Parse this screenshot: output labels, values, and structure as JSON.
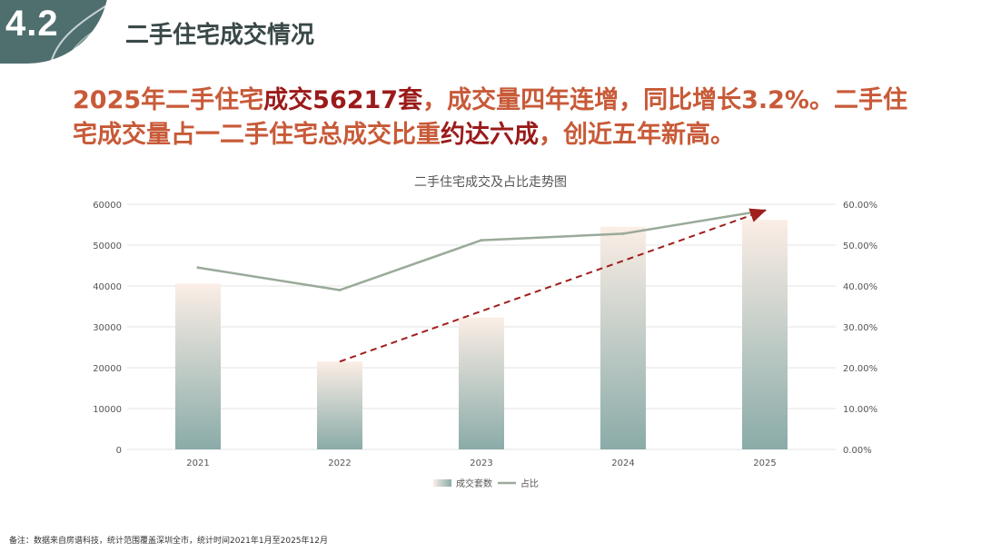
{
  "header": {
    "section_number": "4.2",
    "section_title": "二手住宅成交情况"
  },
  "headline": {
    "line1_part1": "2025年二手住宅",
    "line1_highlight": "成交56217套",
    "line1_part2": "，成交量四年连增，同比增长3.2%。二手住",
    "line2_part1": "宅成交量占一二手住宅总成交比重",
    "line2_highlight": "约达六成",
    "line2_part2": "，创近五年新高。"
  },
  "footnote": "备注：数据来自房谱科技，统计范围覆盖深圳全市，统计时间2021年1月至2025年12月",
  "colors": {
    "badge": "#4f6f6f",
    "headline": "#c85a38",
    "headline_highlight": "#9b1a1a",
    "bar_top": "#fbeee6",
    "bar_bottom": "#8aaba8",
    "line": "#9aaa99",
    "trend_arrow": "#a01e1e"
  },
  "chart_data": {
    "type": "bar",
    "title": "二手住宅成交及占比走势图",
    "categories": [
      "2021",
      "2022",
      "2023",
      "2024",
      "2025"
    ],
    "series": [
      {
        "name": "成交套数",
        "type": "bar",
        "axis": "left",
        "values": [
          40600,
          21500,
          32300,
          54500,
          56217
        ]
      },
      {
        "name": "占比",
        "type": "line",
        "axis": "right",
        "values": [
          44.5,
          39.0,
          51.2,
          52.8,
          58.5
        ]
      }
    ],
    "y_left": {
      "min": 0,
      "max": 60000,
      "ticks": [
        "0",
        "10000",
        "20000",
        "30000",
        "40000",
        "50000",
        "60000"
      ]
    },
    "y_right": {
      "min": 0,
      "max": 60,
      "ticks": [
        "0.00%",
        "10.00%",
        "20.00%",
        "30.00%",
        "40.00%",
        "50.00%",
        "60.00%"
      ]
    },
    "trend_arrow": {
      "from": "2022",
      "to": "2025"
    },
    "grid": true,
    "legend": "bottom"
  }
}
